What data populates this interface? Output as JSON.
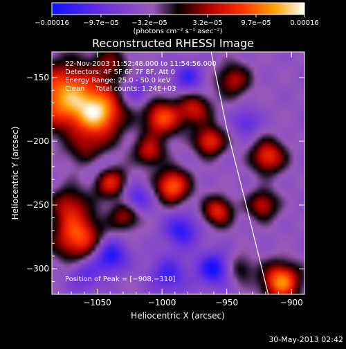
{
  "chart_data": {
    "type": "heatmap",
    "title": "Reconstructed RHESSI Image",
    "xlabel": "Heliocentric X (arcsec)",
    "ylabel": "Heliocentric Y (arcsec)",
    "xlim": [
      -1085,
      -890
    ],
    "ylim": [
      -320,
      -130
    ],
    "x_ticks": [
      -1050,
      -1000,
      -950,
      -900
    ],
    "y_ticks": [
      -300,
      -250,
      -200,
      -150
    ],
    "x_tick_labels": [
      "−1050",
      "−1000",
      "−950",
      "−900"
    ],
    "y_tick_labels": [
      "−300",
      "−250",
      "−200",
      "−150"
    ],
    "colorbar": {
      "ticks": [
        "−0.00016",
        "−9.7e−05",
        "−3.2e−05",
        "3.2e−05",
        "9.7e−05",
        "0.00016"
      ],
      "range": [
        -0.00016,
        0.00016
      ],
      "units_label": "(photons cm⁻² s⁻¹ asec⁻²)"
    },
    "annotations": [
      "22-Nov-2003 11:52:48.000 to 11:54:56.000",
      "Detectors: 4F 5F 6F 7F 8F, Att 0",
      "Energy Range: 25.0 - 50.0 keV",
      "Clean     Total counts: 1.24E+03"
    ],
    "peak_label": "Position of Peak = [−908,−310]",
    "peak": [
      -908,
      -310
    ],
    "limb": [
      [
        -962,
        -130
      ],
      [
        -950,
        -190
      ],
      [
        -935,
        -250
      ],
      [
        -918,
        -320
      ]
    ],
    "sources": [
      {
        "x": -1075,
        "y": -165,
        "a": 1.0,
        "s": 18
      },
      {
        "x": -1048,
        "y": -178,
        "a": 0.95,
        "s": 13
      },
      {
        "x": -1055,
        "y": -210,
        "a": 0.55,
        "s": 11
      },
      {
        "x": -1040,
        "y": -232,
        "a": 0.7,
        "s": 9
      },
      {
        "x": -1065,
        "y": -275,
        "a": 0.85,
        "s": 13
      },
      {
        "x": -1072,
        "y": -250,
        "a": 0.5,
        "s": 10
      },
      {
        "x": -1028,
        "y": -258,
        "a": 0.55,
        "s": 8
      },
      {
        "x": -1000,
        "y": -182,
        "a": 0.8,
        "s": 10
      },
      {
        "x": -975,
        "y": -175,
        "a": 0.6,
        "s": 9
      },
      {
        "x": -1010,
        "y": -208,
        "a": 0.6,
        "s": 8
      },
      {
        "x": -992,
        "y": -235,
        "a": 0.9,
        "s": 9
      },
      {
        "x": -963,
        "y": -200,
        "a": 0.75,
        "s": 8
      },
      {
        "x": -957,
        "y": -255,
        "a": 0.7,
        "s": 8
      },
      {
        "x": -945,
        "y": -152,
        "a": 0.55,
        "s": 9
      },
      {
        "x": -918,
        "y": -212,
        "a": 0.75,
        "s": 9
      },
      {
        "x": -922,
        "y": -250,
        "a": 0.6,
        "s": 8
      },
      {
        "x": -1040,
        "y": -140,
        "a": 0.4,
        "s": 10
      },
      {
        "x": -908,
        "y": -310,
        "a": 1.0,
        "s": 10
      },
      {
        "x": -940,
        "y": -300,
        "a": 0.35,
        "s": 8
      },
      {
        "x": -1050,
        "y": -218,
        "a": -0.5,
        "s": 9
      },
      {
        "x": -1020,
        "y": -245,
        "a": -0.5,
        "s": 8
      },
      {
        "x": -1040,
        "y": -290,
        "a": -0.7,
        "s": 9
      },
      {
        "x": -985,
        "y": -270,
        "a": -0.6,
        "s": 9
      },
      {
        "x": -960,
        "y": -300,
        "a": -0.7,
        "s": 9
      },
      {
        "x": -1060,
        "y": -305,
        "a": -0.4,
        "s": 9
      },
      {
        "x": -995,
        "y": -305,
        "a": -0.5,
        "s": 10
      },
      {
        "x": -1020,
        "y": -160,
        "a": -0.35,
        "s": 8
      },
      {
        "x": -980,
        "y": -150,
        "a": -0.5,
        "s": 8
      },
      {
        "x": -935,
        "y": -185,
        "a": -0.4,
        "s": 7
      }
    ]
  },
  "footer": {
    "timestamp": "30-May-2013 02:42"
  }
}
